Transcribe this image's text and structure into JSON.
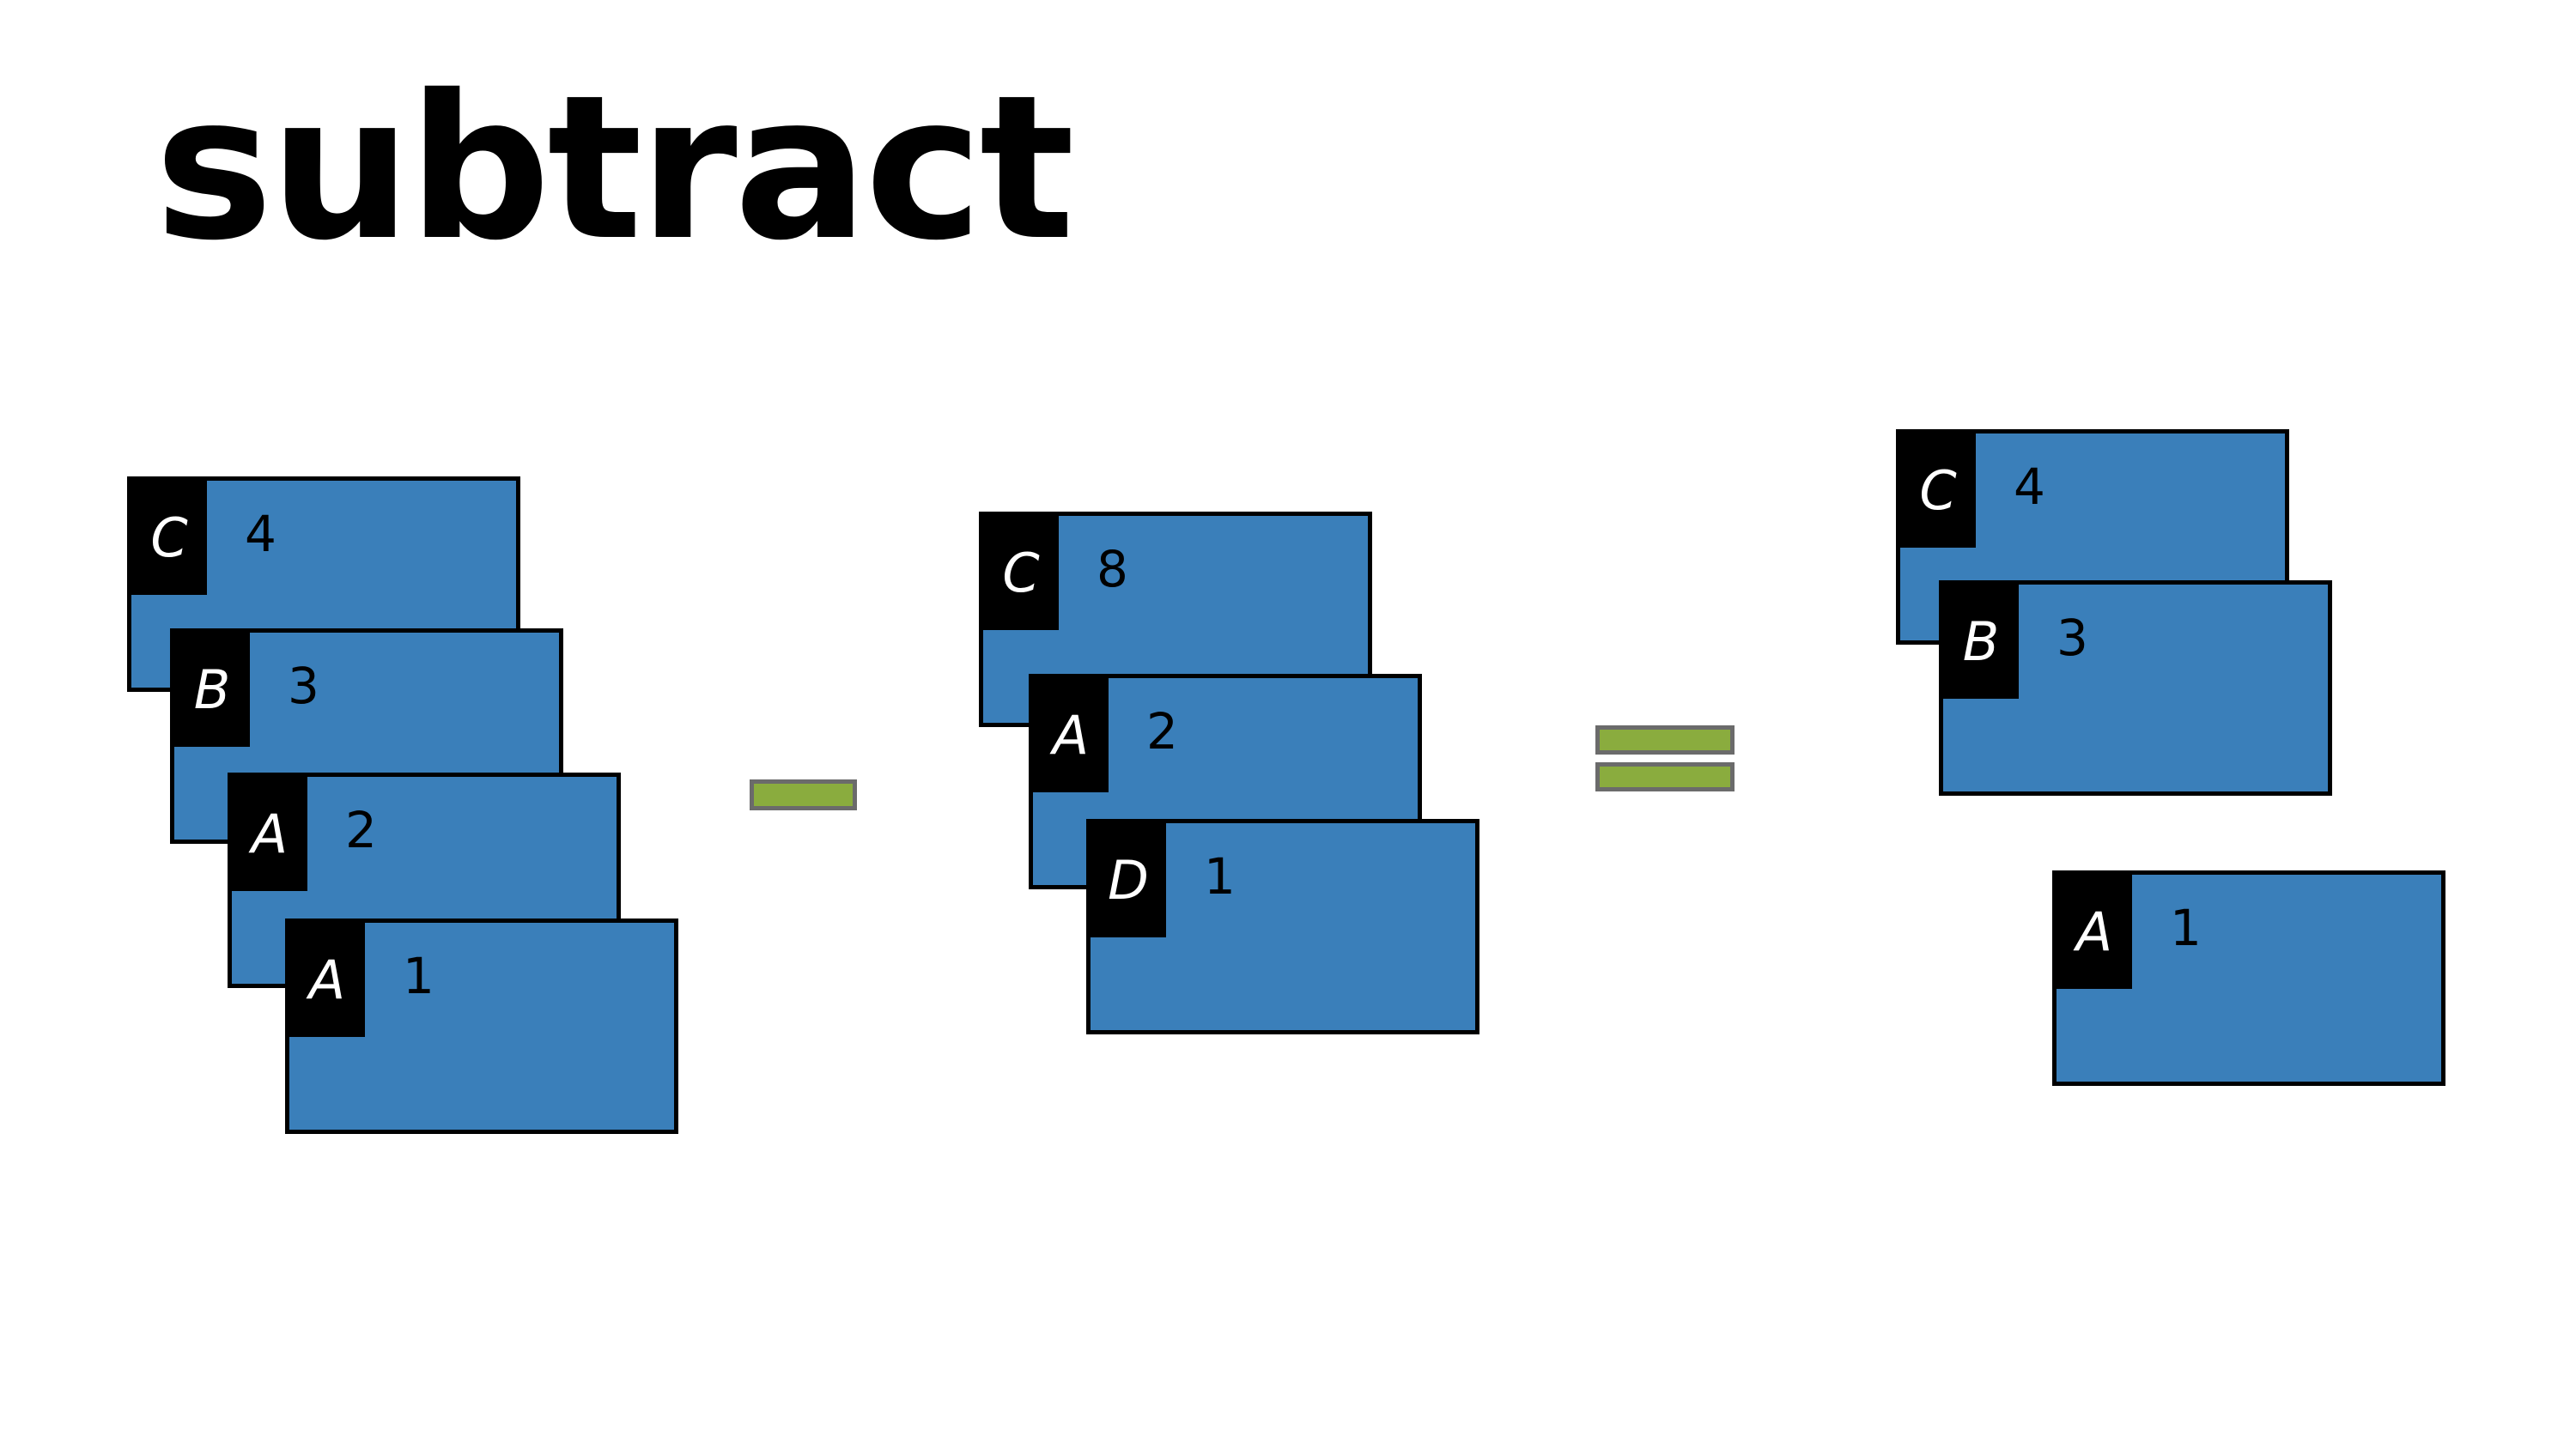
{
  "title": "subtract",
  "stacks": {
    "left": [
      {
        "key": "C",
        "value": "4"
      },
      {
        "key": "B",
        "value": "3"
      },
      {
        "key": "A",
        "value": "2"
      },
      {
        "key": "A",
        "value": "1"
      }
    ],
    "middle": [
      {
        "key": "C",
        "value": "8"
      },
      {
        "key": "A",
        "value": "2"
      },
      {
        "key": "D",
        "value": "1"
      }
    ],
    "result_top": [
      {
        "key": "C",
        "value": "4"
      },
      {
        "key": "B",
        "value": "3"
      }
    ],
    "result_bottom": [
      {
        "key": "A",
        "value": "1"
      }
    ]
  },
  "operators": {
    "minus": "minus-sign",
    "equals": "equals-sign"
  },
  "colors": {
    "card": "#3a7fba",
    "key_bg": "#000000",
    "operator": "#8aac3e"
  }
}
